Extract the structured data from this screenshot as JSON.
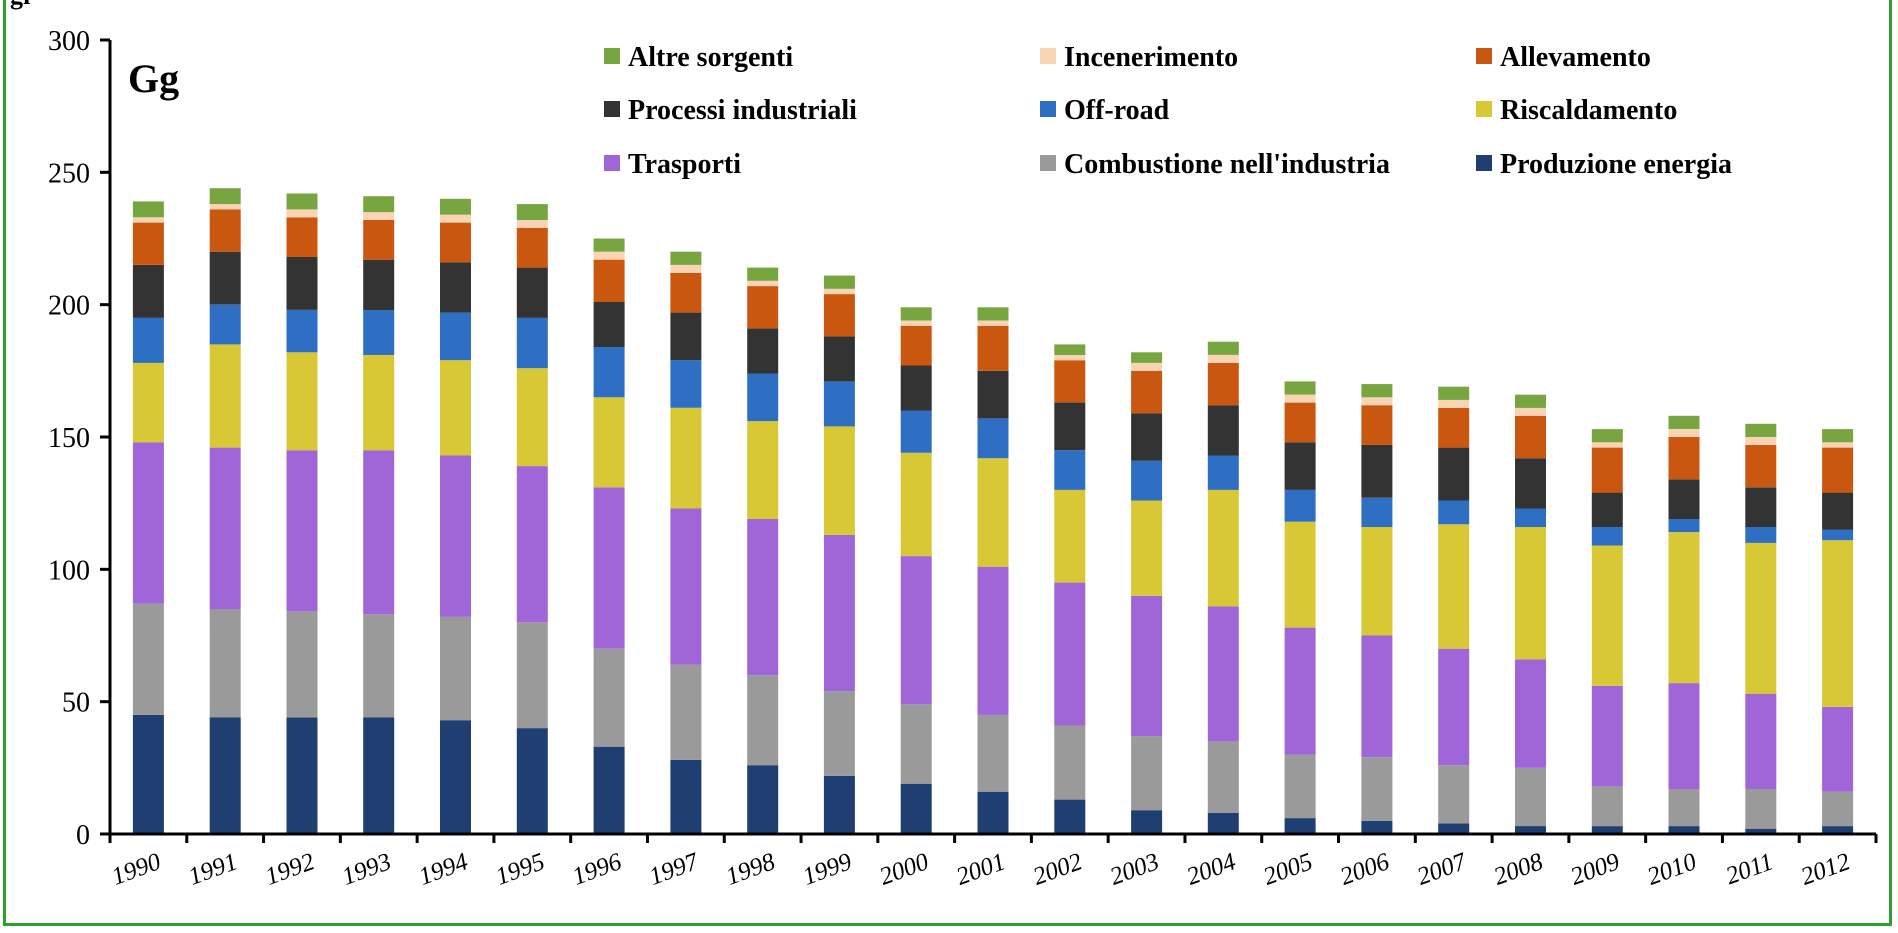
{
  "chart_data": {
    "type": "bar",
    "stacked": true,
    "unit_label": "Gg",
    "ylim": [
      0,
      300
    ],
    "yticks": [
      0,
      50,
      100,
      150,
      200,
      250,
      300
    ],
    "grid": false,
    "legend_position": "top",
    "categories": [
      "1990",
      "1991",
      "1992",
      "1993",
      "1994",
      "1995",
      "1996",
      "1997",
      "1998",
      "1999",
      "2000",
      "2001",
      "2002",
      "2003",
      "2004",
      "2005",
      "2006",
      "2007",
      "2008",
      "2009",
      "2010",
      "2011",
      "2012"
    ],
    "series": [
      {
        "name": "Produzione energia",
        "color": "#1f3f72",
        "values": [
          45,
          44,
          44,
          44,
          43,
          40,
          33,
          28,
          26,
          22,
          19,
          16,
          13,
          9,
          8,
          6,
          5,
          4,
          3,
          3,
          3,
          2,
          3
        ]
      },
      {
        "name": "Combustione nell'industria",
        "color": "#9a9a9a",
        "values": [
          42,
          41,
          40,
          39,
          39,
          40,
          37,
          36,
          34,
          32,
          30,
          29,
          28,
          28,
          27,
          24,
          24,
          22,
          22,
          15,
          14,
          15,
          13
        ]
      },
      {
        "name": "Trasporti",
        "color": "#a066d8",
        "values": [
          61,
          61,
          61,
          62,
          61,
          59,
          61,
          59,
          59,
          59,
          56,
          56,
          54,
          53,
          51,
          48,
          46,
          44,
          41,
          38,
          40,
          36,
          32
        ]
      },
      {
        "name": "Riscaldamento",
        "color": "#d9c835",
        "values": [
          30,
          39,
          37,
          36,
          36,
          37,
          34,
          38,
          37,
          41,
          39,
          41,
          35,
          36,
          44,
          40,
          41,
          47,
          50,
          53,
          57,
          57,
          63
        ]
      },
      {
        "name": "Off-road",
        "color": "#2e6fc4",
        "values": [
          17,
          15,
          16,
          17,
          18,
          19,
          19,
          18,
          18,
          17,
          16,
          15,
          15,
          15,
          13,
          12,
          11,
          9,
          7,
          7,
          5,
          6,
          4
        ]
      },
      {
        "name": "Processi industriali",
        "color": "#333333",
        "values": [
          20,
          20,
          20,
          19,
          19,
          19,
          17,
          18,
          17,
          17,
          17,
          18,
          18,
          18,
          19,
          18,
          20,
          20,
          19,
          13,
          15,
          15,
          14
        ]
      },
      {
        "name": "Allevamento",
        "color": "#c9570f",
        "values": [
          16,
          16,
          15,
          15,
          15,
          15,
          16,
          15,
          16,
          16,
          15,
          17,
          16,
          16,
          16,
          15,
          15,
          15,
          16,
          17,
          16,
          16,
          17
        ]
      },
      {
        "name": "Incenerimento",
        "color": "#f8d4b4",
        "values": [
          2,
          2,
          3,
          3,
          3,
          3,
          3,
          3,
          2,
          2,
          2,
          2,
          2,
          3,
          3,
          3,
          3,
          3,
          3,
          2,
          3,
          3,
          2
        ]
      },
      {
        "name": "Altre sorgenti",
        "color": "#77a640",
        "values": [
          6,
          6,
          6,
          6,
          6,
          6,
          5,
          5,
          5,
          5,
          5,
          5,
          4,
          4,
          5,
          5,
          5,
          5,
          5,
          5,
          5,
          5,
          5
        ]
      }
    ],
    "legend_order": [
      "Altre sorgenti",
      "Incenerimento",
      "Allevamento",
      "Processi industriali",
      "Off-road",
      "Riscaldamento",
      "Trasporti",
      "Combustione nell'industria",
      "Produzione energia"
    ]
  },
  "top_clipped_text": "gi"
}
